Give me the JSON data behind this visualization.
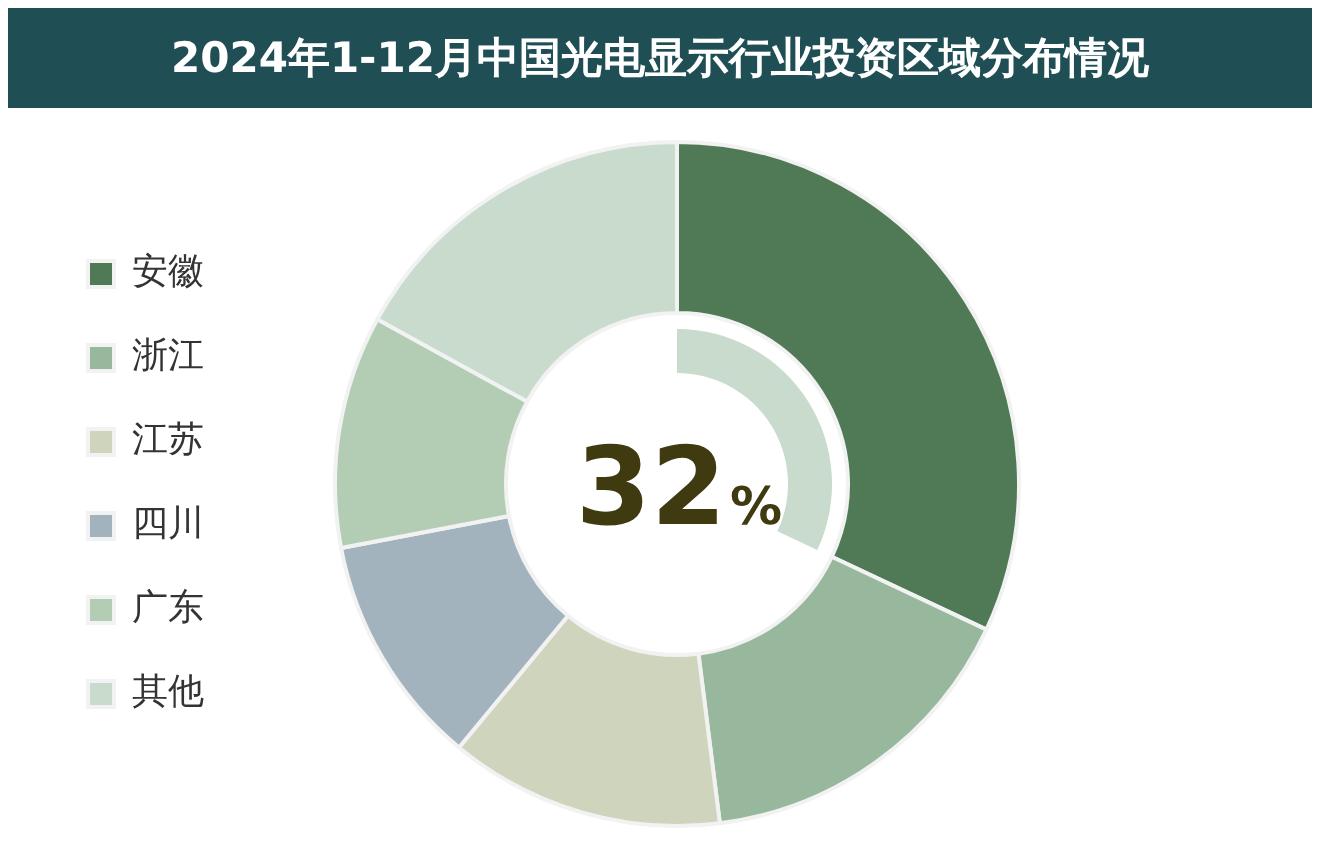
{
  "chart_data": {
    "type": "donut",
    "title": "2024年1-12月中国光电显示行业投资区域分布情况",
    "categories": [
      "安徽",
      "浙江",
      "江苏",
      "四川",
      "广东",
      "其他"
    ],
    "values": [
      32,
      16,
      13,
      11,
      11,
      17
    ],
    "colors": [
      "#4f7a55",
      "#98b89e",
      "#cfd4bd",
      "#a3b3bd",
      "#b3cdb5",
      "#c9dbcd"
    ],
    "annotations": [
      "32%"
    ],
    "legend": "left"
  }
}
